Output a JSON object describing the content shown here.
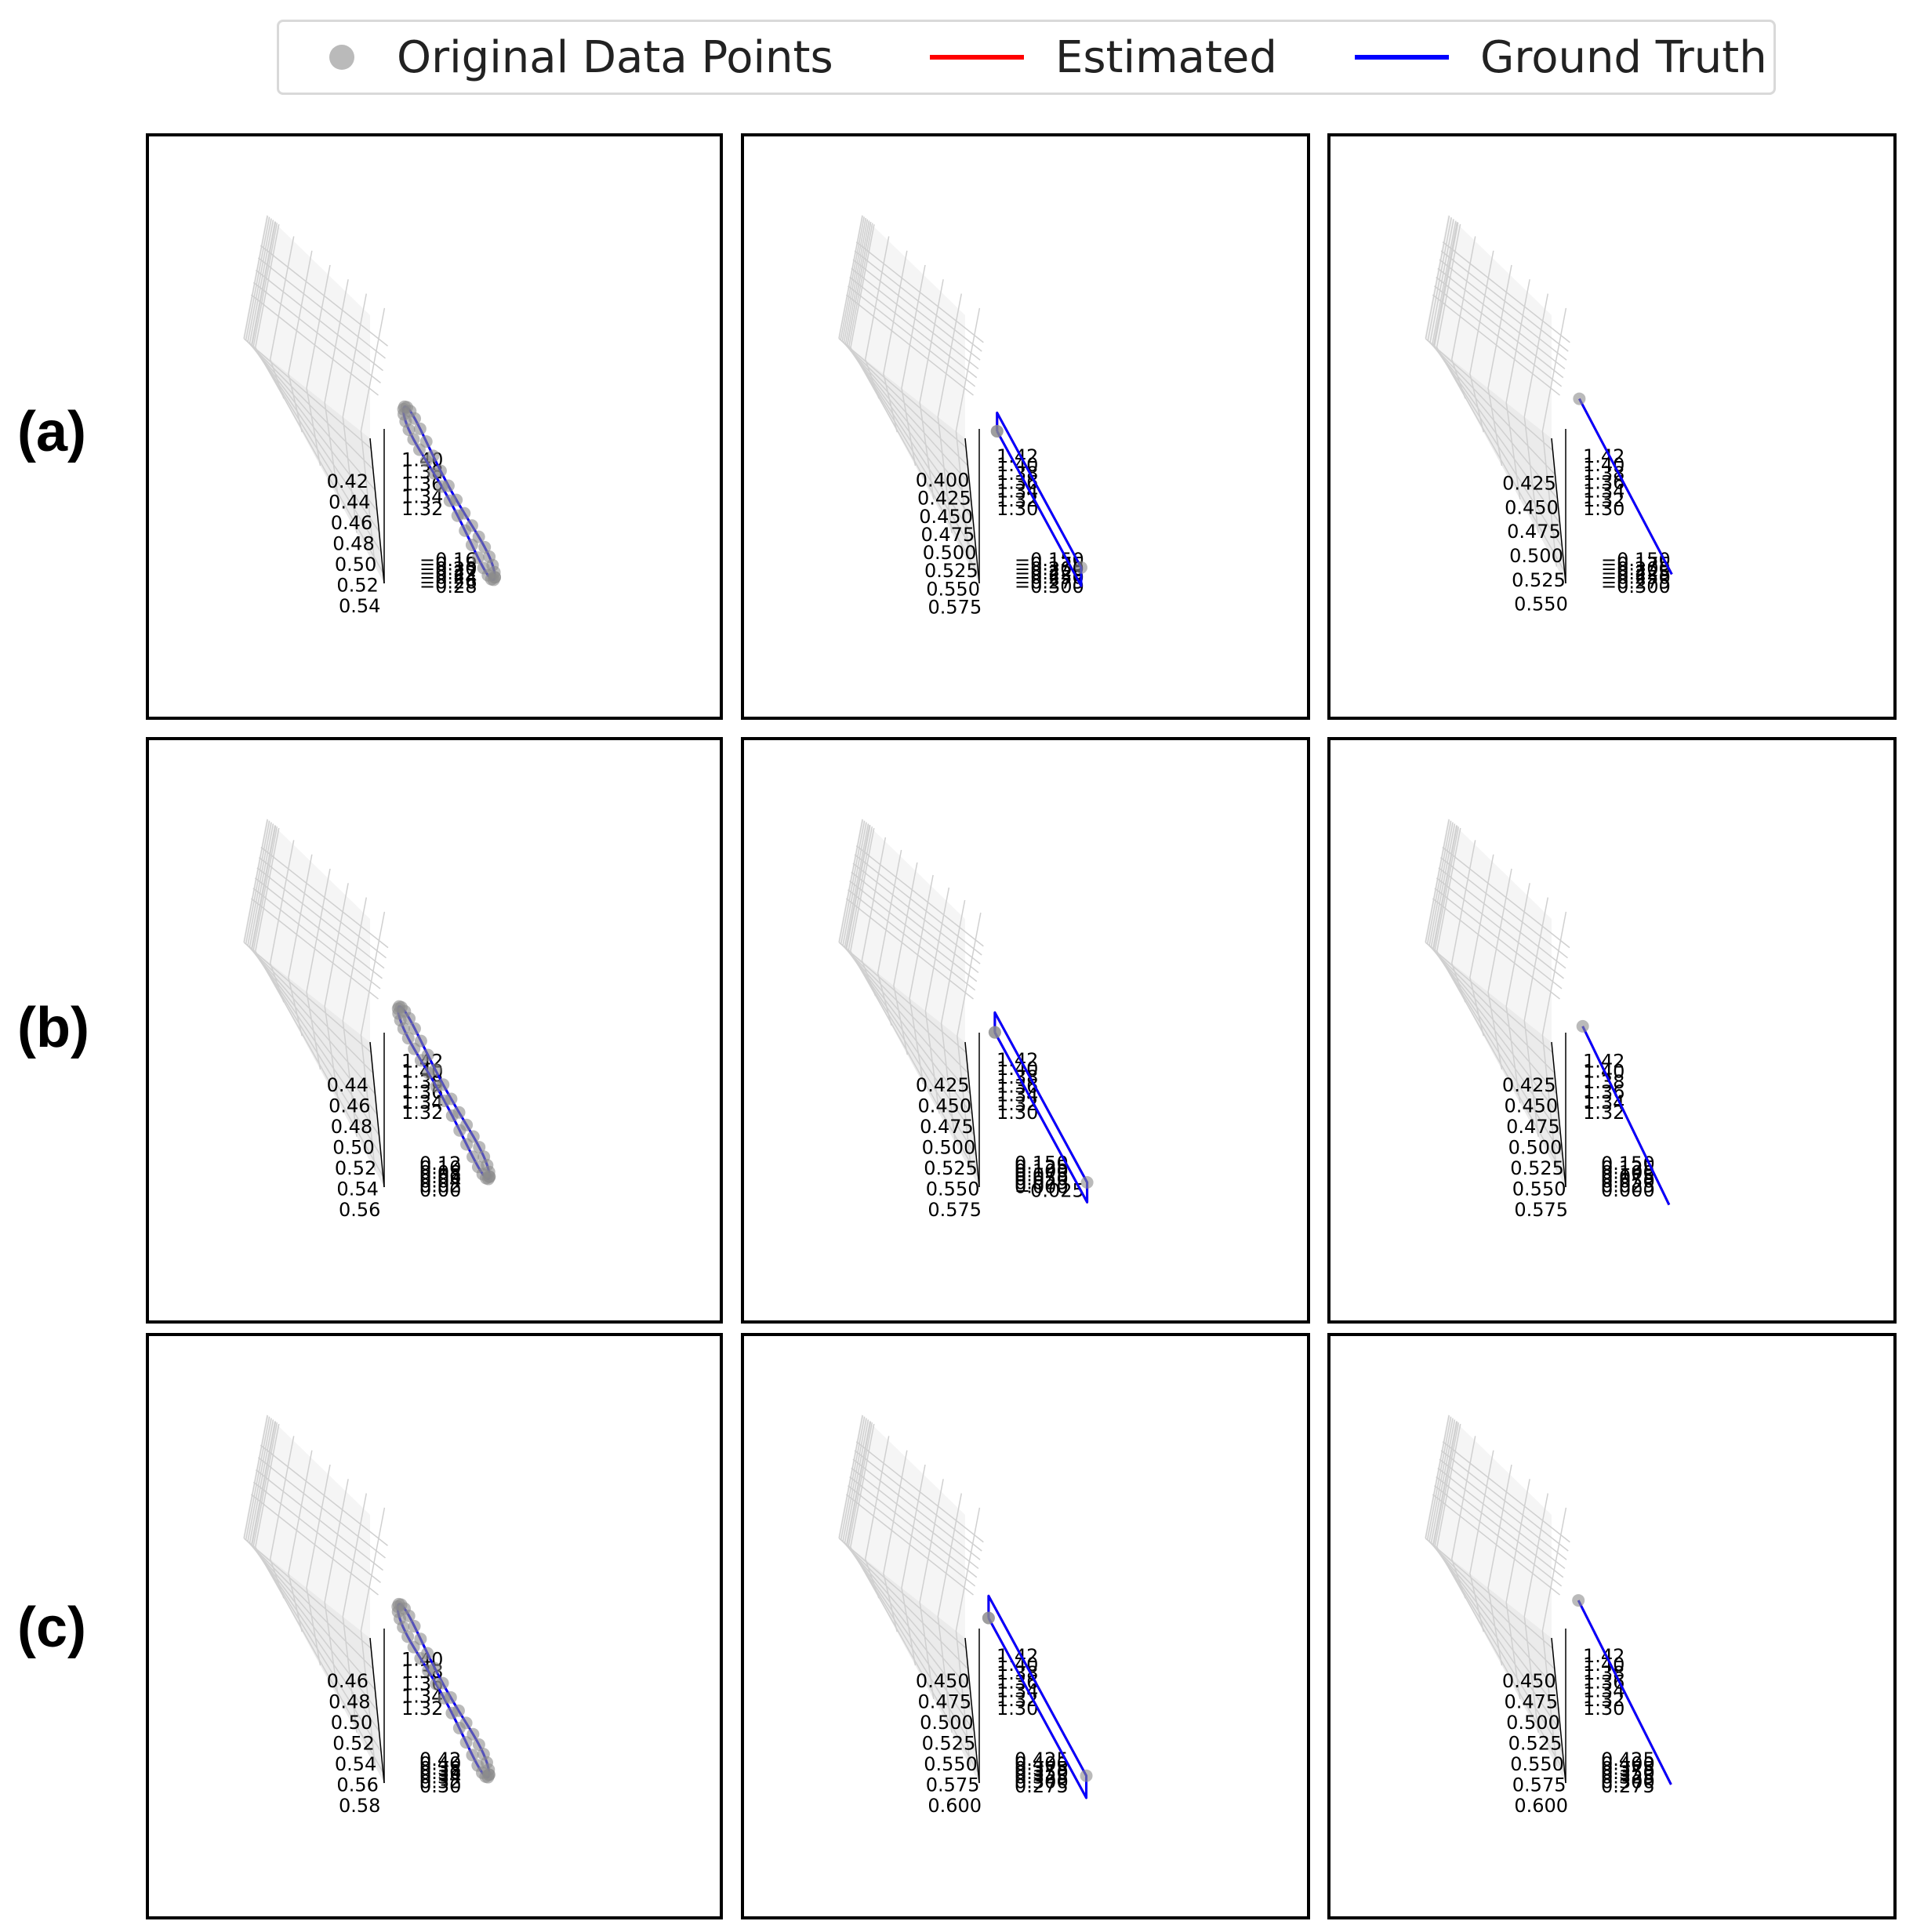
{
  "legend": {
    "items": [
      {
        "label": "Original Data Points",
        "kind": "marker",
        "color": "#8c8c8c"
      },
      {
        "label": "Estimated",
        "kind": "line",
        "color": "#ff0000"
      },
      {
        "label": "Ground Truth",
        "kind": "line",
        "color": "#0000ff"
      }
    ]
  },
  "row_labels": [
    "(a)",
    "(b)",
    "(c)"
  ],
  "colors": {
    "estimated": "#ff0000",
    "ground_truth": "#0000ff",
    "points": "#8c8c8c",
    "pane": "#f2f2f2",
    "grid": "#d0d0d0"
  },
  "chart_data": [
    {
      "type": "scatter",
      "row": "(a)",
      "shape": "circle",
      "x_ticks": [
        "0.42",
        "0.44",
        "0.46",
        "0.48",
        "0.50",
        "0.52",
        "0.54"
      ],
      "y_ticks": [
        "−0.28",
        "−0.26",
        "−0.24",
        "−0.22",
        "−0.20",
        "−0.18",
        "−0.16"
      ],
      "z_ticks": [
        "1.32",
        "1.34",
        "1.36",
        "1.38",
        "1.40"
      ],
      "xlim": [
        0.41,
        0.55
      ],
      "ylim": [
        -0.29,
        -0.15
      ],
      "zlim": [
        1.31,
        1.41
      ],
      "series": [
        {
          "name": "Estimated",
          "path": {
            "cx": 0.485,
            "cy": -0.22,
            "z": 1.355,
            "rx": 0.05,
            "ry": 0.05
          }
        },
        {
          "name": "Ground Truth",
          "path": {
            "cx": 0.485,
            "cy": -0.22,
            "z": 1.355,
            "rx": 0.05,
            "ry": 0.05
          }
        }
      ]
    },
    {
      "type": "scatter",
      "row": "(a)",
      "shape": "square",
      "x_ticks": [
        "0.400",
        "0.425",
        "0.450",
        "0.475",
        "0.500",
        "0.525",
        "0.550",
        "0.575"
      ],
      "y_ticks": [
        "−0.300",
        "−0.275",
        "−0.250",
        "−0.225",
        "−0.200",
        "−0.175",
        "−0.150"
      ],
      "z_ticks": [
        "1.30",
        "1.32",
        "1.34",
        "1.36",
        "1.38",
        "1.40",
        "1.42"
      ],
      "xlim": [
        0.39,
        0.58
      ],
      "ylim": [
        -0.31,
        -0.14
      ],
      "zlim": [
        1.29,
        1.43
      ],
      "series": [
        {
          "name": "Estimated",
          "corners": [
            [
              0.425,
              -0.275
            ],
            [
              0.55,
              -0.275
            ],
            [
              0.55,
              -0.175
            ],
            [
              0.425,
              -0.175
            ]
          ],
          "z": 1.34
        },
        {
          "name": "Ground Truth",
          "corners": [
            [
              0.425,
              -0.275
            ],
            [
              0.55,
              -0.275
            ],
            [
              0.55,
              -0.175
            ],
            [
              0.425,
              -0.175
            ]
          ],
          "z": 1.34
        }
      ]
    },
    {
      "type": "scatter",
      "row": "(a)",
      "shape": "line",
      "x_ticks": [
        "0.425",
        "0.450",
        "0.475",
        "0.500",
        "0.525",
        "0.550"
      ],
      "y_ticks": [
        "−0.300",
        "−0.275",
        "−0.250",
        "−0.225",
        "−0.200",
        "−0.175",
        "−0.150"
      ],
      "z_ticks": [
        "1.30",
        "1.32",
        "1.34",
        "1.36",
        "1.38",
        "1.40",
        "1.42"
      ],
      "xlim": [
        0.41,
        0.57
      ],
      "ylim": [
        -0.31,
        -0.14
      ],
      "zlim": [
        1.29,
        1.43
      ],
      "series": [
        {
          "name": "Estimated",
          "start": [
            0.43,
            -0.27,
            1.36
          ],
          "end": [
            0.55,
            -0.17,
            1.34
          ]
        },
        {
          "name": "Ground Truth",
          "start": [
            0.43,
            -0.27,
            1.36
          ],
          "end": [
            0.55,
            -0.17,
            1.34
          ]
        }
      ]
    },
    {
      "type": "scatter",
      "row": "(b)",
      "shape": "circle",
      "x_ticks": [
        "0.44",
        "0.46",
        "0.48",
        "0.50",
        "0.52",
        "0.54",
        "0.56"
      ],
      "y_ticks": [
        "0.00",
        "0.02",
        "0.04",
        "0.06",
        "0.08",
        "0.10",
        "0.12"
      ],
      "z_ticks": [
        "1.32",
        "1.34",
        "1.36",
        "1.38",
        "1.40",
        "1.42"
      ],
      "xlim": [
        0.43,
        0.57
      ],
      "ylim": [
        -0.01,
        0.13
      ],
      "zlim": [
        1.31,
        1.43
      ],
      "series": [
        {
          "name": "Estimated",
          "path": {
            "cx": 0.5,
            "cy": 0.06,
            "z": 1.36,
            "rx": 0.05,
            "ry": 0.05
          }
        },
        {
          "name": "Ground Truth",
          "path": {
            "cx": 0.5,
            "cy": 0.06,
            "z": 1.36,
            "rx": 0.05,
            "ry": 0.05
          }
        }
      ]
    },
    {
      "type": "scatter",
      "row": "(b)",
      "shape": "square",
      "x_ticks": [
        "0.425",
        "0.450",
        "0.475",
        "0.500",
        "0.525",
        "0.550",
        "0.575"
      ],
      "y_ticks": [
        "−0.025",
        "0.000",
        "0.025",
        "0.050",
        "0.075",
        "0.100",
        "0.125",
        "0.150"
      ],
      "z_ticks": [
        "1.30",
        "1.32",
        "1.34",
        "1.36",
        "1.38",
        "1.40",
        "1.42"
      ],
      "xlim": [
        0.41,
        0.59
      ],
      "ylim": [
        -0.03,
        0.16
      ],
      "zlim": [
        1.29,
        1.43
      ],
      "series": [
        {
          "name": "Estimated",
          "corners": [
            [
              0.44,
              0.0
            ],
            [
              0.57,
              0.0
            ],
            [
              0.57,
              0.12
            ],
            [
              0.44,
              0.12
            ]
          ],
          "z": 1.34
        },
        {
          "name": "Ground Truth",
          "corners": [
            [
              0.44,
              0.0
            ],
            [
              0.57,
              0.0
            ],
            [
              0.57,
              0.12
            ],
            [
              0.44,
              0.12
            ]
          ],
          "z": 1.34
        }
      ]
    },
    {
      "type": "scatter",
      "row": "(b)",
      "shape": "line",
      "x_ticks": [
        "0.425",
        "0.450",
        "0.475",
        "0.500",
        "0.525",
        "0.550",
        "0.575"
      ],
      "y_ticks": [
        "0.000",
        "0.025",
        "0.050",
        "0.075",
        "0.100",
        "0.125",
        "0.150"
      ],
      "z_ticks": [
        "1.32",
        "1.34",
        "1.36",
        "1.38",
        "1.40",
        "1.42"
      ],
      "xlim": [
        0.41,
        0.59
      ],
      "ylim": [
        -0.01,
        0.16
      ],
      "zlim": [
        1.31,
        1.43
      ],
      "series": [
        {
          "name": "Estimated",
          "start": [
            0.44,
            0.01,
            1.36
          ],
          "end": [
            0.57,
            0.13,
            1.33
          ]
        },
        {
          "name": "Ground Truth",
          "start": [
            0.44,
            0.01,
            1.36
          ],
          "end": [
            0.57,
            0.13,
            1.33
          ]
        }
      ]
    },
    {
      "type": "scatter",
      "row": "(c)",
      "shape": "circle",
      "x_ticks": [
        "0.46",
        "0.48",
        "0.50",
        "0.52",
        "0.54",
        "0.56",
        "0.58"
      ],
      "y_ticks": [
        "0.30",
        "0.32",
        "0.34",
        "0.36",
        "0.38",
        "0.40",
        "0.42"
      ],
      "z_ticks": [
        "1.32",
        "1.34",
        "1.36",
        "1.38",
        "1.40"
      ],
      "xlim": [
        0.45,
        0.59
      ],
      "ylim": [
        0.29,
        0.43
      ],
      "zlim": [
        1.31,
        1.41
      ],
      "series": [
        {
          "name": "Estimated",
          "path": {
            "cx": 0.52,
            "cy": 0.36,
            "z": 1.35,
            "rx": 0.05,
            "ry": 0.05
          }
        },
        {
          "name": "Ground Truth",
          "path": {
            "cx": 0.52,
            "cy": 0.36,
            "z": 1.35,
            "rx": 0.05,
            "ry": 0.05
          }
        }
      ]
    },
    {
      "type": "scatter",
      "row": "(c)",
      "shape": "square",
      "x_ticks": [
        "0.450",
        "0.475",
        "0.500",
        "0.525",
        "0.550",
        "0.575",
        "0.600"
      ],
      "y_ticks": [
        "0.275",
        "0.300",
        "0.325",
        "0.350",
        "0.375",
        "0.400",
        "0.425"
      ],
      "z_ticks": [
        "1.30",
        "1.32",
        "1.34",
        "1.36",
        "1.38",
        "1.40",
        "1.42"
      ],
      "xlim": [
        0.44,
        0.61
      ],
      "ylim": [
        0.27,
        0.44
      ],
      "zlim": [
        1.29,
        1.43
      ],
      "series": [
        {
          "name": "Estimated",
          "corners": [
            [
              0.46,
              0.29
            ],
            [
              0.59,
              0.29
            ],
            [
              0.59,
              0.41
            ],
            [
              0.46,
              0.41
            ]
          ],
          "z": 1.34
        },
        {
          "name": "Ground Truth",
          "corners": [
            [
              0.46,
              0.29
            ],
            [
              0.59,
              0.29
            ],
            [
              0.59,
              0.41
            ],
            [
              0.46,
              0.41
            ]
          ],
          "z": 1.34
        }
      ]
    },
    {
      "type": "scatter",
      "row": "(c)",
      "shape": "line",
      "x_ticks": [
        "0.450",
        "0.475",
        "0.500",
        "0.525",
        "0.550",
        "0.575",
        "0.600"
      ],
      "y_ticks": [
        "0.275",
        "0.300",
        "0.325",
        "0.350",
        "0.375",
        "0.400",
        "0.425"
      ],
      "z_ticks": [
        "1.30",
        "1.32",
        "1.34",
        "1.36",
        "1.38",
        "1.40",
        "1.42"
      ],
      "xlim": [
        0.44,
        0.61
      ],
      "ylim": [
        0.27,
        0.44
      ],
      "zlim": [
        1.29,
        1.43
      ],
      "series": [
        {
          "name": "Estimated",
          "start": [
            0.46,
            0.29,
            1.36
          ],
          "end": [
            0.59,
            0.41,
            1.33
          ]
        },
        {
          "name": "Ground Truth",
          "start": [
            0.46,
            0.29,
            1.36
          ],
          "end": [
            0.59,
            0.41,
            1.33
          ]
        }
      ]
    }
  ]
}
